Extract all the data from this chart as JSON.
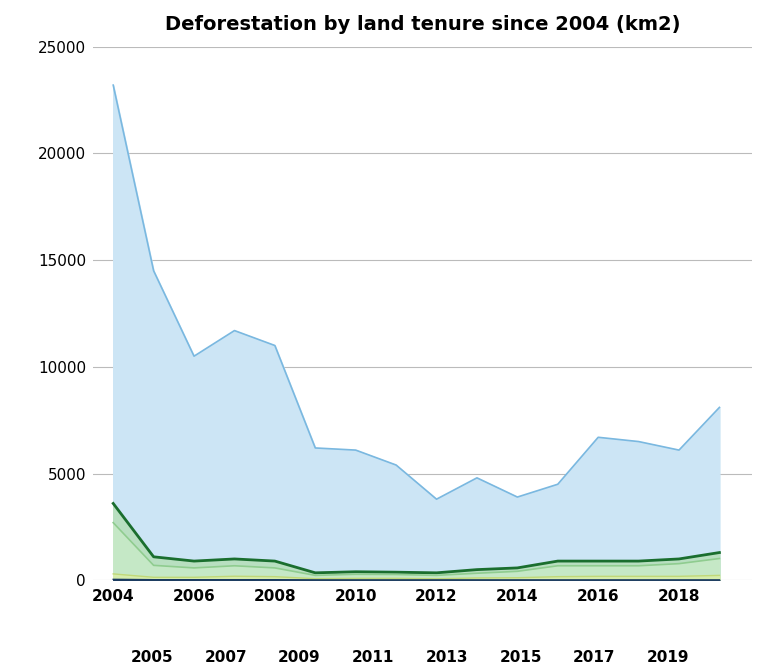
{
  "title": "Deforestation by land tenure since 2004 (km2)",
  "years": [
    2004,
    2005,
    2006,
    2007,
    2008,
    2009,
    2010,
    2011,
    2012,
    2013,
    2014,
    2015,
    2016,
    2017,
    2018,
    2019
  ],
  "series": {
    "light_blue": [
      23200,
      14500,
      10500,
      11700,
      11000,
      6200,
      6100,
      5400,
      3800,
      4800,
      3900,
      4500,
      6700,
      6500,
      6100,
      8100
    ],
    "dark_green": [
      3600,
      1100,
      900,
      1000,
      900,
      350,
      400,
      380,
      350,
      500,
      580,
      900,
      900,
      900,
      1000,
      1300
    ],
    "light_green": [
      2700,
      700,
      580,
      680,
      580,
      230,
      280,
      270,
      230,
      330,
      420,
      680,
      680,
      680,
      780,
      1020
    ],
    "yellow_green": [
      300,
      140,
      140,
      190,
      170,
      75,
      90,
      90,
      70,
      110,
      120,
      170,
      185,
      185,
      185,
      230
    ],
    "dark_blue": [
      45,
      28,
      28,
      28,
      28,
      18,
      18,
      18,
      18,
      18,
      18,
      18,
      18,
      18,
      18,
      18
    ]
  },
  "colors": {
    "light_blue_fill": "#cce5f5",
    "light_blue_line": "#7ab8e0",
    "dark_green_line": "#1a6e2e",
    "dark_green_fill": "#b8dfc0",
    "light_green_fill": "#c8eac8",
    "light_green_line": "#8fcc8f",
    "yellow_green_fill": "#d8eeaa",
    "yellow_green_line": "#c0d878",
    "dark_blue_fill": "#1a3a60",
    "dark_blue_line": "#1a3a60"
  },
  "ylim": [
    0,
    25000
  ],
  "yticks": [
    0,
    5000,
    10000,
    15000,
    20000,
    25000
  ],
  "background_color": "#ffffff",
  "grid_color": "#bbbbbb",
  "title_fontsize": 14
}
